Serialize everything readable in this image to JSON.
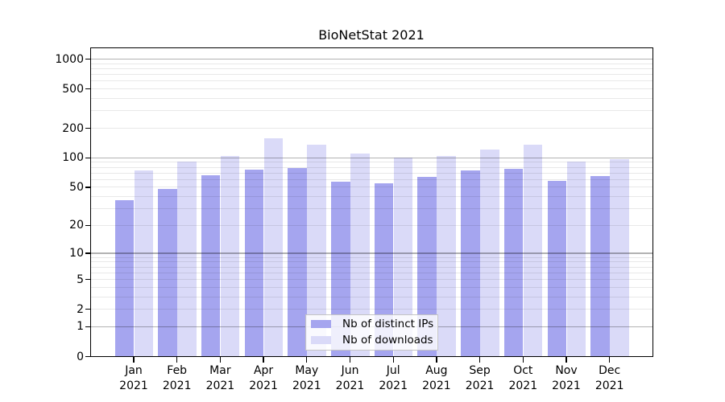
{
  "figure": {
    "background": "#ffffff"
  },
  "chart_data": {
    "type": "bar",
    "title": "BioNetStat 2021",
    "xlabel": "",
    "ylabel": "",
    "categories": [
      "Jan 2021",
      "Feb 2021",
      "Mar 2021",
      "Apr 2021",
      "May 2021",
      "Jun 2021",
      "Jul 2021",
      "Aug 2021",
      "Sep 2021",
      "Oct 2021",
      "Nov 2021",
      "Dec 2021"
    ],
    "series": [
      {
        "name": "Nb of distinct IPs",
        "color": "#a5a5ef",
        "values": [
          37,
          48,
          67,
          76,
          79,
          57,
          55,
          64,
          75,
          78,
          58,
          65
        ]
      },
      {
        "name": "Nb of downloads",
        "color": "#dadaf8",
        "values": [
          75,
          92,
          104,
          158,
          136,
          111,
          101,
          105,
          122,
          136,
          92,
          97
        ]
      }
    ],
    "y_scale": "log10(value+1)",
    "y_axis_ticks": [
      0,
      1,
      2,
      5,
      10,
      20,
      50,
      100,
      200,
      500,
      1000
    ],
    "y_major_gridlines": [
      1,
      10,
      100,
      1000
    ],
    "y_minor_gridlines": [
      2,
      3,
      4,
      5,
      6,
      7,
      8,
      9,
      20,
      30,
      40,
      50,
      60,
      70,
      80,
      90,
      200,
      300,
      400,
      500,
      600,
      700,
      800,
      900
    ],
    "grid": true,
    "legend_position": "inside-bottom-center"
  },
  "colors": {
    "bar_distinct_ips": "#a5a5ef",
    "bar_downloads": "#dadaf8",
    "grid_minor": "rgba(0,0,0,0.09)",
    "grid_major": "rgba(0,0,0,0.30)",
    "axis": "#000000",
    "legend_border": "#c4c4c4",
    "legend_background": "rgba(255,255,255,0.82)"
  }
}
